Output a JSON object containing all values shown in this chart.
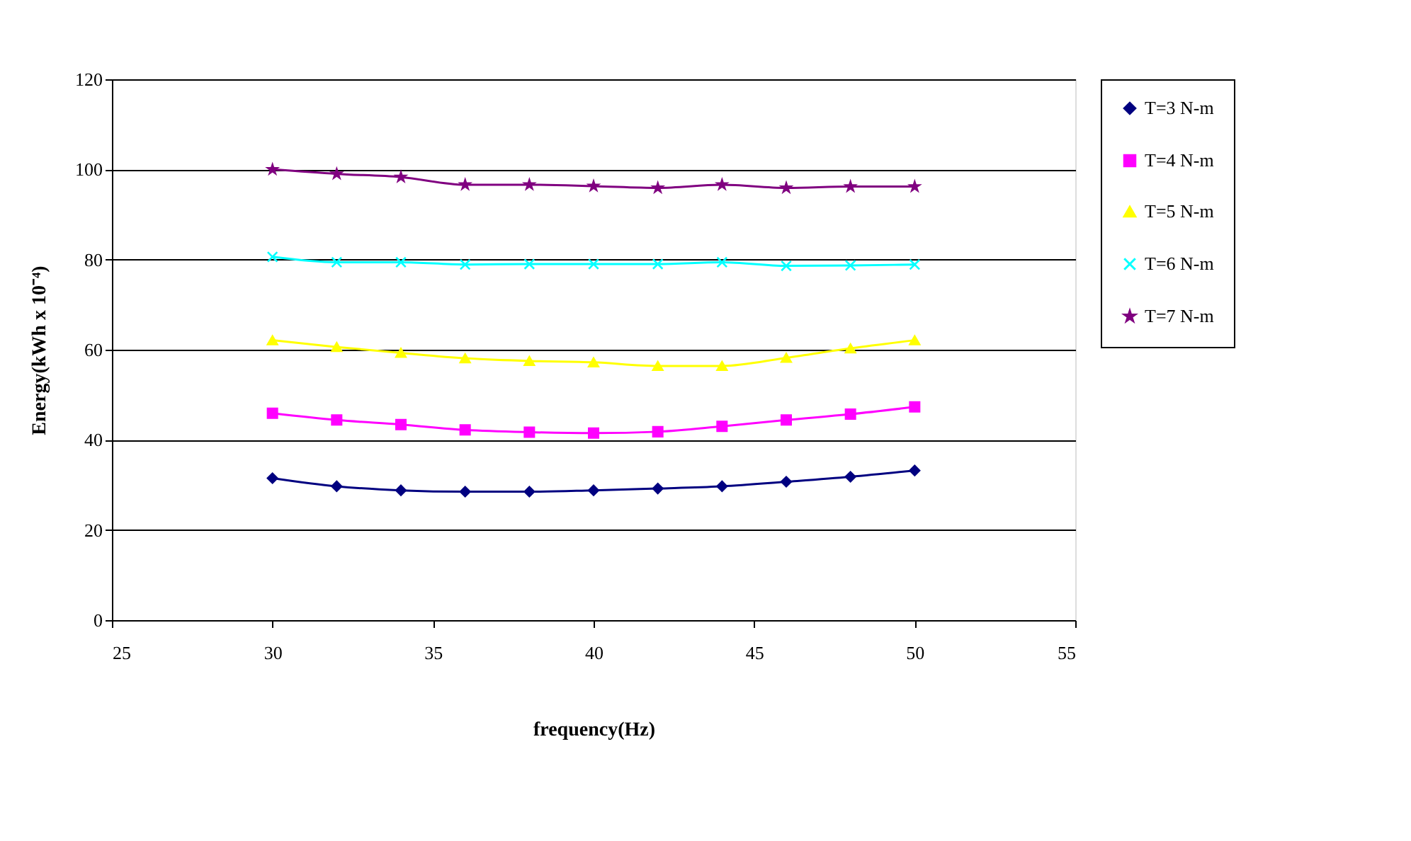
{
  "chart_data": {
    "type": "line",
    "xlabel": "frequency(Hz)",
    "ylabel": "Energy(kWh x 10⁻⁴)",
    "x": [
      30,
      32,
      34,
      36,
      38,
      40,
      42,
      44,
      46,
      48,
      50
    ],
    "series": [
      {
        "name": "T=3 N-m",
        "color": "#000080",
        "marker": "diamond",
        "values": [
          31.5,
          29.7,
          28.8,
          28.5,
          28.5,
          28.8,
          29.2,
          29.7,
          30.7,
          31.8,
          33.2
        ]
      },
      {
        "name": "T=4 N-m",
        "color": "#ff00ff",
        "marker": "square",
        "values": [
          45.9,
          44.4,
          43.4,
          42.2,
          41.7,
          41.5,
          41.8,
          43.0,
          44.4,
          45.7,
          47.3
        ]
      },
      {
        "name": "T=5 N-m",
        "color": "#ffff00",
        "marker": "triangle",
        "values": [
          62.1,
          60.6,
          59.3,
          58.1,
          57.5,
          57.2,
          56.4,
          56.4,
          58.2,
          60.3,
          62.1
        ]
      },
      {
        "name": "T=6 N-m",
        "color": "#00ffff",
        "marker": "cross",
        "values": [
          80.6,
          79.4,
          79.4,
          78.9,
          79.0,
          79.0,
          79.0,
          79.4,
          78.6,
          78.7,
          78.9
        ]
      },
      {
        "name": "T=7 N-m",
        "color": "#800080",
        "marker": "star",
        "values": [
          100,
          99.0,
          98.3,
          96.6,
          96.6,
          96.3,
          95.9,
          96.6,
          95.9,
          96.2,
          96.2
        ]
      }
    ],
    "xlim": [
      25,
      55
    ],
    "xticks": [
      25,
      30,
      35,
      40,
      45,
      50,
      55
    ],
    "ylim": [
      0,
      120
    ],
    "yticks": [
      0,
      20,
      40,
      60,
      80,
      100,
      120
    ],
    "grid": "y",
    "legend": "right",
    "line_style": "solid"
  }
}
